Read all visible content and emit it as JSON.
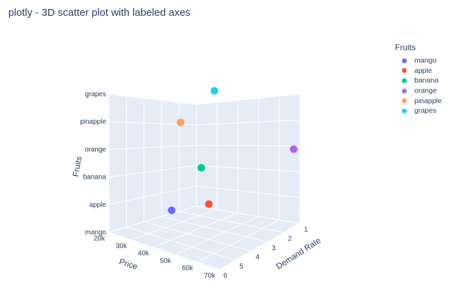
{
  "chart_data": {
    "type": "scatter3d",
    "title": "plotly - 3D scatter plot with labeled axes",
    "x_axis": {
      "title": "Price",
      "ticks": [
        "20k",
        "30k",
        "40k",
        "50k",
        "60k",
        "70k"
      ]
    },
    "y_axis": {
      "title": "Demand Rate",
      "ticks": [
        "1",
        "2",
        "3",
        "4",
        "5",
        "6"
      ]
    },
    "z_axis": {
      "title": "Fruits",
      "ticks": [
        "mango",
        "apple",
        "banana",
        "orange",
        "pinapple",
        "grapes"
      ]
    },
    "legend": {
      "title": "Fruits",
      "placement": "top-right"
    },
    "series": [
      {
        "name": "mango",
        "color": "#636efa",
        "price": 40000,
        "demand_rate": 1,
        "fruit": "mango"
      },
      {
        "name": "apple",
        "color": "#ef553b",
        "price": 60000,
        "demand_rate": 2,
        "fruit": "apple"
      },
      {
        "name": "banana",
        "color": "#00cc96",
        "price": 70000,
        "demand_rate": 4,
        "fruit": "banana"
      },
      {
        "name": "orange",
        "color": "#ab63fa",
        "price": 60000,
        "demand_rate": 6,
        "fruit": "orange"
      },
      {
        "name": "pinapple",
        "color": "#ffa15a",
        "price": 50000,
        "demand_rate": 5,
        "fruit": "pinapple"
      },
      {
        "name": "grapes",
        "color": "#19d3f3",
        "price": 20000,
        "demand_rate": 3,
        "fruit": "grapes"
      }
    ]
  }
}
